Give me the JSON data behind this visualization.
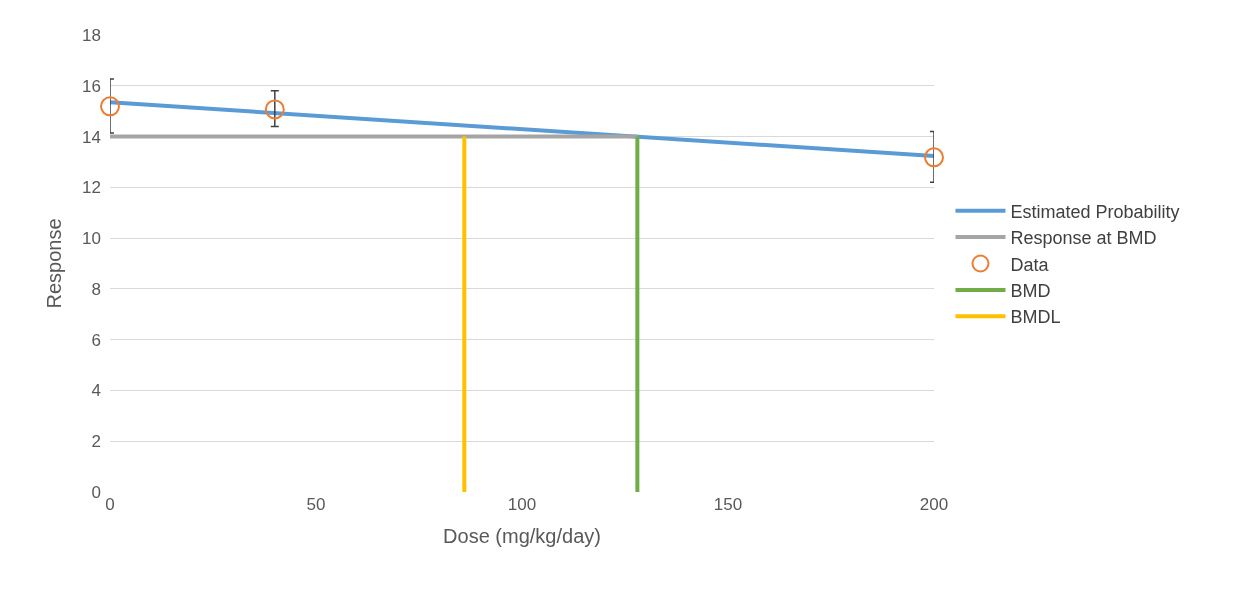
{
  "chart_data": {
    "type": "line",
    "xlabel": "Dose (mg/kg/day)",
    "ylabel": "Response",
    "xlim": [
      0,
      200
    ],
    "xticks": [
      0,
      50,
      100,
      150,
      200
    ],
    "ylim": [
      0,
      18
    ],
    "yticks": [
      0,
      2,
      4,
      6,
      8,
      10,
      12,
      14,
      16,
      18
    ],
    "grid": "y",
    "legend": "right",
    "series": [
      {
        "name": "Estimated Probability",
        "color": "#5b9bd5",
        "x": [
          0,
          200
        ],
        "values": [
          15.35,
          13.23
        ]
      },
      {
        "name": "Response at BMD",
        "color": "#a5a5a5",
        "x": [
          0,
          128
        ],
        "values": [
          14,
          14
        ]
      },
      {
        "name": "Data",
        "type": "scatter",
        "marker": "circle",
        "color": "#ed7d31",
        "x": [
          0,
          40,
          200
        ],
        "values": [
          15.19,
          15.07,
          13.18
        ],
        "errors": [
          [
            14.14,
            16.27
          ],
          [
            14.4,
            15.8
          ],
          [
            12.2,
            14.2
          ]
        ]
      },
      {
        "name": "BMD",
        "color": "#70ad47",
        "x": [
          128,
          128
        ],
        "values": [
          0,
          14
        ]
      },
      {
        "name": "BMDL",
        "color": "#ffc000",
        "x": [
          86,
          86
        ],
        "values": [
          0,
          14
        ]
      }
    ]
  }
}
